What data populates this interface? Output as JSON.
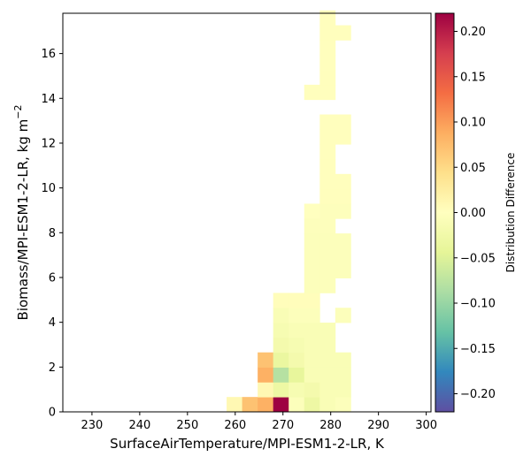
{
  "chart_data": {
    "type": "heatmap",
    "title": "",
    "xlabel": "SurfaceAirTemperature/MPI-ESM1-2-LR,  K",
    "ylabel_main": "Biomass/MPI-ESM1-2-LR,  kg m",
    "ylabel_sup": "−2",
    "xlim": [
      223.9,
      301.0
    ],
    "ylim": [
      0,
      17.8
    ],
    "xticks": [
      "230",
      "240",
      "250",
      "260",
      "270",
      "280",
      "290",
      "300"
    ],
    "yticks": [
      "0",
      "2",
      "4",
      "6",
      "8",
      "10",
      "12",
      "14",
      "16"
    ],
    "bin_width_x": 3.25,
    "bin_width_y": 0.664,
    "grid": false,
    "colormap": "Spectral_r",
    "colorbar": {
      "label": "Distribution Difference",
      "vmin": -0.22,
      "vmax": 0.22,
      "ticks": [
        "−0.20",
        "−0.15",
        "−0.10",
        "−0.05",
        "0.00",
        "0.05",
        "0.10",
        "0.15",
        "0.20"
      ]
    },
    "cells": [
      {
        "x0": 258.2,
        "y0": 0.0,
        "v": 0.01
      },
      {
        "x0": 261.45,
        "y0": 0.0,
        "v": 0.07
      },
      {
        "x0": 264.7,
        "y0": 0.0,
        "v": 0.085
      },
      {
        "x0": 267.95,
        "y0": 0.0,
        "v": 0.22
      },
      {
        "x0": 271.2,
        "y0": 0.0,
        "v": -0.005
      },
      {
        "x0": 274.45,
        "y0": 0.0,
        "v": -0.03
      },
      {
        "x0": 277.7,
        "y0": 0.0,
        "v": -0.01
      },
      {
        "x0": 280.95,
        "y0": 0.0,
        "v": -0.005
      },
      {
        "x0": 264.7,
        "y0": 0.664,
        "v": 0.01
      },
      {
        "x0": 267.95,
        "y0": 0.664,
        "v": -0.03
      },
      {
        "x0": 271.2,
        "y0": 0.664,
        "v": -0.015
      },
      {
        "x0": 274.45,
        "y0": 0.664,
        "v": -0.02
      },
      {
        "x0": 277.7,
        "y0": 0.664,
        "v": -0.01
      },
      {
        "x0": 280.95,
        "y0": 0.664,
        "v": -0.01
      },
      {
        "x0": 264.7,
        "y0": 1.328,
        "v": 0.085
      },
      {
        "x0": 267.95,
        "y0": 1.328,
        "v": -0.08
      },
      {
        "x0": 271.2,
        "y0": 1.328,
        "v": -0.04
      },
      {
        "x0": 274.45,
        "y0": 1.328,
        "v": -0.01
      },
      {
        "x0": 277.7,
        "y0": 1.328,
        "v": -0.01
      },
      {
        "x0": 280.95,
        "y0": 1.328,
        "v": -0.01
      },
      {
        "x0": 264.7,
        "y0": 1.992,
        "v": 0.07
      },
      {
        "x0": 267.95,
        "y0": 1.992,
        "v": -0.035
      },
      {
        "x0": 271.2,
        "y0": 1.992,
        "v": -0.02
      },
      {
        "x0": 274.45,
        "y0": 1.992,
        "v": -0.01
      },
      {
        "x0": 277.7,
        "y0": 1.992,
        "v": -0.01
      },
      {
        "x0": 280.95,
        "y0": 1.992,
        "v": -0.01
      },
      {
        "x0": 267.95,
        "y0": 2.656,
        "v": -0.02
      },
      {
        "x0": 271.2,
        "y0": 2.656,
        "v": -0.015
      },
      {
        "x0": 274.45,
        "y0": 2.656,
        "v": -0.01
      },
      {
        "x0": 277.7,
        "y0": 2.656,
        "v": -0.01
      },
      {
        "x0": 267.95,
        "y0": 3.32,
        "v": -0.015
      },
      {
        "x0": 271.2,
        "y0": 3.32,
        "v": -0.01
      },
      {
        "x0": 274.45,
        "y0": 3.32,
        "v": -0.01
      },
      {
        "x0": 277.7,
        "y0": 3.32,
        "v": -0.01
      },
      {
        "x0": 267.95,
        "y0": 3.984,
        "v": -0.01
      },
      {
        "x0": 271.2,
        "y0": 3.984,
        "v": -0.005
      },
      {
        "x0": 274.45,
        "y0": 3.984,
        "v": -0.005
      },
      {
        "x0": 280.95,
        "y0": 3.984,
        "v": -0.005
      },
      {
        "x0": 267.95,
        "y0": 4.648,
        "v": 0.003
      },
      {
        "x0": 271.2,
        "y0": 4.648,
        "v": 0.003
      },
      {
        "x0": 274.45,
        "y0": 4.648,
        "v": 0.003
      },
      {
        "x0": 274.45,
        "y0": 5.312,
        "v": -0.005
      },
      {
        "x0": 277.7,
        "y0": 5.312,
        "v": -0.005
      },
      {
        "x0": 274.45,
        "y0": 5.976,
        "v": -0.005
      },
      {
        "x0": 277.7,
        "y0": 5.976,
        "v": -0.005
      },
      {
        "x0": 280.95,
        "y0": 5.976,
        "v": -0.005
      },
      {
        "x0": 274.45,
        "y0": 6.64,
        "v": -0.005
      },
      {
        "x0": 277.7,
        "y0": 6.64,
        "v": -0.005
      },
      {
        "x0": 280.95,
        "y0": 6.64,
        "v": -0.005
      },
      {
        "x0": 274.45,
        "y0": 7.304,
        "v": -0.005
      },
      {
        "x0": 277.7,
        "y0": 7.304,
        "v": -0.005
      },
      {
        "x0": 280.95,
        "y0": 7.304,
        "v": -0.005
      },
      {
        "x0": 274.45,
        "y0": 7.968,
        "v": -0.003
      },
      {
        "x0": 277.7,
        "y0": 7.968,
        "v": -0.003
      },
      {
        "x0": 277.7,
        "y0": 8.632,
        "v": -0.003
      },
      {
        "x0": 280.95,
        "y0": 8.632,
        "v": -0.003
      },
      {
        "x0": 274.45,
        "y0": 8.632,
        "v": 0.0
      },
      {
        "x0": 277.7,
        "y0": 9.296,
        "v": 0.002
      },
      {
        "x0": 280.95,
        "y0": 9.296,
        "v": 0.002
      },
      {
        "x0": 280.95,
        "y0": 9.96,
        "v": 0.002
      },
      {
        "x0": 277.7,
        "y0": 9.96,
        "v": 0.002
      },
      {
        "x0": 277.7,
        "y0": 10.624,
        "v": 0.002
      },
      {
        "x0": 277.7,
        "y0": 11.288,
        "v": 0.002
      },
      {
        "x0": 277.7,
        "y0": 11.952,
        "v": 0.002
      },
      {
        "x0": 280.95,
        "y0": 11.952,
        "v": 0.002
      },
      {
        "x0": 277.7,
        "y0": 12.616,
        "v": 0.002
      },
      {
        "x0": 280.95,
        "y0": 12.616,
        "v": 0.002
      },
      {
        "x0": 274.45,
        "y0": 13.944,
        "v": 0.002
      },
      {
        "x0": 277.7,
        "y0": 13.944,
        "v": 0.002
      },
      {
        "x0": 277.7,
        "y0": 14.608,
        "v": 0.002
      },
      {
        "x0": 277.7,
        "y0": 15.272,
        "v": 0.002
      },
      {
        "x0": 277.7,
        "y0": 15.936,
        "v": 0.002
      },
      {
        "x0": 277.7,
        "y0": 16.6,
        "v": 0.002
      },
      {
        "x0": 280.95,
        "y0": 16.6,
        "v": 0.002
      },
      {
        "x0": 277.7,
        "y0": 17.264,
        "v": 0.002
      }
    ]
  }
}
